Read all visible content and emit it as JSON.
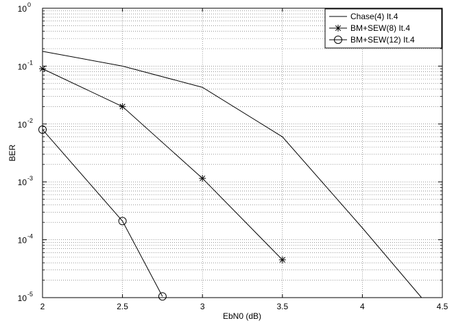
{
  "chart_data": {
    "type": "line",
    "title": "",
    "xlabel": "EbN0 (dB)",
    "ylabel": "BER",
    "xlim": [
      2,
      4.5
    ],
    "ylim": [
      1e-05,
      1
    ],
    "yscale": "log",
    "grid": true,
    "legend_position": "top-right",
    "x_ticks": [
      "2",
      "2.5",
      "3",
      "3.5",
      "4",
      "4.5"
    ],
    "y_ticks": [
      {
        "base": "10",
        "exp": "0",
        "value": 1
      },
      {
        "base": "10",
        "exp": "-1",
        "value": 0.1
      },
      {
        "base": "10",
        "exp": "-2",
        "value": 0.01
      },
      {
        "base": "10",
        "exp": "-3",
        "value": 0.001
      },
      {
        "base": "10",
        "exp": "-4",
        "value": 0.0001
      },
      {
        "base": "10",
        "exp": "-5",
        "value": 1e-05
      }
    ],
    "series": [
      {
        "name": "Chase(4) It.4",
        "marker": "none",
        "x": [
          2,
          2.5,
          3,
          3.5,
          4,
          4.37
        ],
        "y": [
          0.18,
          0.1,
          0.043,
          0.006,
          0.00016,
          1e-05
        ]
      },
      {
        "name": "BM+SEW(8) It.4",
        "marker": "star",
        "x": [
          2,
          2.5,
          3,
          3.5
        ],
        "y": [
          0.09,
          0.02,
          0.00115,
          4.5e-05
        ]
      },
      {
        "name": "BM+SEW(12) It.4",
        "marker": "circle",
        "x": [
          2,
          2.5,
          2.75
        ],
        "y": [
          0.008,
          0.00021,
          1.05e-05
        ]
      }
    ]
  }
}
